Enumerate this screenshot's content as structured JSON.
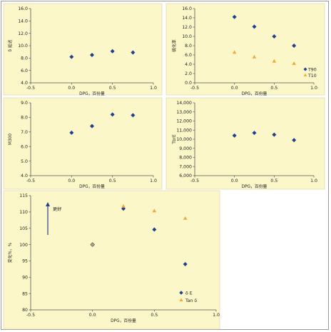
{
  "style": {
    "plot_bg": "#fcf7c9",
    "outer_bg": "#ffffff",
    "axis_color": "#555555",
    "diamond_color": "#1f3f8f",
    "triangle_color": "#f0a830",
    "tan_first_fill": "#b8a58a"
  },
  "chart_data": [
    {
      "id": "p1",
      "type": "scatter",
      "ylabel": "δ 延迟",
      "xlabel": "DPG，百份量",
      "xlim": [
        -0.5,
        1.0
      ],
      "ylim": [
        4.0,
        16.0
      ],
      "x_ticks": [
        "-0.5",
        "0.0",
        "0.5",
        "1.0"
      ],
      "y_ticks": [
        "4.0",
        "6.0",
        "8.0",
        "10.0",
        "12.0",
        "14.0",
        "16.0"
      ],
      "series": [
        {
          "marker": "diamond",
          "points": [
            [
              0.0,
              8.2
            ],
            [
              0.25,
              8.5
            ],
            [
              0.5,
              9.1
            ],
            [
              0.75,
              8.9
            ]
          ]
        }
      ]
    },
    {
      "id": "p2",
      "type": "scatter",
      "ylabel": "硫化率",
      "xlabel": "DPG，百份量",
      "xlim": [
        -0.5,
        1.0
      ],
      "ylim": [
        0.0,
        16.0
      ],
      "x_ticks": [
        "-0.5",
        "0.0",
        "0.5",
        "1.0"
      ],
      "y_ticks": [
        "0.0",
        "2.0",
        "4.0",
        "6.0",
        "8.0",
        "10.0",
        "12.0",
        "14.0",
        "16.0"
      ],
      "legend": [
        "T90",
        "T10"
      ],
      "series": [
        {
          "name": "T90",
          "marker": "diamond",
          "points": [
            [
              0.0,
              14.2
            ],
            [
              0.25,
              12.1
            ],
            [
              0.5,
              10.0
            ],
            [
              0.75,
              8.0
            ]
          ]
        },
        {
          "name": "T10",
          "marker": "triangle",
          "points": [
            [
              0.0,
              6.6
            ],
            [
              0.25,
              5.6
            ],
            [
              0.5,
              4.7
            ],
            [
              0.75,
              4.2
            ]
          ]
        }
      ]
    },
    {
      "id": "p3",
      "type": "scatter",
      "ylabel": "M300",
      "xlabel": "DPG，百份量",
      "xlim": [
        -0.5,
        1.0
      ],
      "ylim": [
        4.0,
        9.0
      ],
      "x_ticks": [
        "-0.5",
        "0.0",
        "0.5",
        "1.0"
      ],
      "y_ticks": [
        "4.0",
        "5.0",
        "6.0",
        "7.0",
        "8.0",
        "9.0"
      ],
      "series": [
        {
          "marker": "diamond",
          "points": [
            [
              0.0,
              6.95
            ],
            [
              0.25,
              7.4
            ],
            [
              0.5,
              8.2
            ],
            [
              0.75,
              8.15
            ]
          ]
        }
      ]
    },
    {
      "id": "p4",
      "type": "scatter",
      "ylabel": "TbrE",
      "xlabel": "DPG，百份量",
      "xlim": [
        -0.5,
        1.0
      ],
      "ylim": [
        6000,
        14000
      ],
      "x_ticks": [
        "-0.5",
        "0.0",
        "0.5",
        "1.0"
      ],
      "y_ticks": [
        "6,000",
        "7,000",
        "8,000",
        "9,000",
        "10,000",
        "11,000",
        "12,000",
        "13,000",
        "14,000"
      ],
      "series": [
        {
          "marker": "diamond",
          "points": [
            [
              0.0,
              10400
            ],
            [
              0.25,
              10700
            ],
            [
              0.5,
              10500
            ],
            [
              0.75,
              9900
            ]
          ]
        }
      ]
    },
    {
      "id": "p5",
      "type": "scatter",
      "ylabel": "变化%，%",
      "xlabel": "DPG，百份量",
      "xlim": [
        -0.5,
        1.0
      ],
      "ylim": [
        80,
        115
      ],
      "x_ticks": [
        "-0.5",
        "0.0",
        "0.5",
        "1.0"
      ],
      "y_ticks": [
        "80",
        "85",
        "90",
        "95",
        "100",
        "105",
        "110",
        "115"
      ],
      "legend": [
        "δ E",
        "Tan δ"
      ],
      "annotation": "更好",
      "series": [
        {
          "name": "δ E",
          "marker": "diamond",
          "points": [
            [
              0.0,
              100
            ],
            [
              0.25,
              111
            ],
            [
              0.5,
              104.6
            ],
            [
              0.75,
              94
            ]
          ]
        },
        {
          "name": "Tan δ",
          "marker": "triangle",
          "points": [
            [
              0.0,
              100
            ],
            [
              0.25,
              111.8
            ],
            [
              0.5,
              110.4
            ],
            [
              0.75,
              108.1
            ]
          ]
        }
      ]
    }
  ]
}
